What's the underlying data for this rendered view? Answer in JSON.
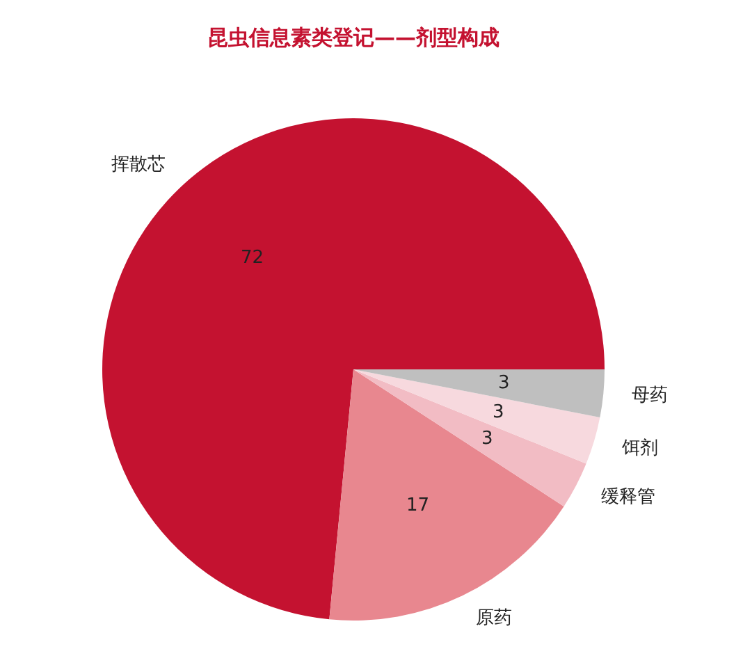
{
  "chart_data": {
    "type": "pie",
    "title": "昆虫信息素类登记——剂型构成",
    "categories": [
      "挥散芯",
      "原药",
      "缓释管",
      "饵剂",
      "母药"
    ],
    "values": [
      72,
      17,
      3,
      3,
      3
    ],
    "colors": [
      "#c41230",
      "#e8878f",
      "#f2bcc4",
      "#f7d9de",
      "#bfbfbf"
    ],
    "data_labels": true,
    "legend": false
  }
}
